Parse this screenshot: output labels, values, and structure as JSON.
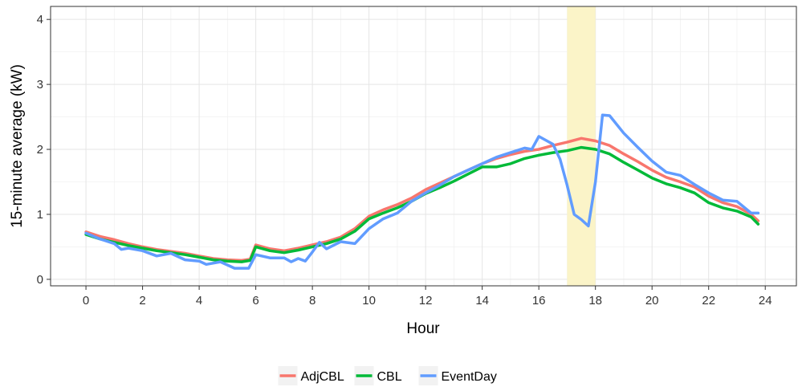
{
  "chart_data": {
    "type": "line",
    "xlabel": "Hour",
    "ylabel": "15-minute average (kW)",
    "xlim": [
      -1.25,
      25.1
    ],
    "ylim": [
      -0.1,
      4.2
    ],
    "x_ticks": [
      0,
      2,
      4,
      6,
      8,
      10,
      12,
      14,
      16,
      18,
      20,
      22,
      24
    ],
    "y_ticks": [
      0,
      1,
      2,
      3,
      4
    ],
    "grid": true,
    "legend_position": "bottom",
    "highlight_band": {
      "from": 17,
      "to": 18,
      "color": "#fbf4c8"
    },
    "series": [
      {
        "name": "AdjCBL",
        "color": "#f8766d",
        "points": [
          [
            0,
            0.73
          ],
          [
            0.5,
            0.66
          ],
          [
            1,
            0.61
          ],
          [
            1.5,
            0.55
          ],
          [
            2,
            0.5
          ],
          [
            2.5,
            0.46
          ],
          [
            3,
            0.43
          ],
          [
            3.5,
            0.4
          ],
          [
            4,
            0.36
          ],
          [
            4.5,
            0.32
          ],
          [
            5,
            0.3
          ],
          [
            5.5,
            0.29
          ],
          [
            5.8,
            0.31
          ],
          [
            6,
            0.53
          ],
          [
            6.5,
            0.47
          ],
          [
            7,
            0.44
          ],
          [
            7.5,
            0.48
          ],
          [
            8,
            0.53
          ],
          [
            8.5,
            0.58
          ],
          [
            9,
            0.65
          ],
          [
            9.5,
            0.78
          ],
          [
            10,
            0.97
          ],
          [
            10.5,
            1.07
          ],
          [
            11,
            1.15
          ],
          [
            11.5,
            1.25
          ],
          [
            12,
            1.38
          ],
          [
            12.5,
            1.48
          ],
          [
            13,
            1.58
          ],
          [
            13.5,
            1.68
          ],
          [
            14,
            1.78
          ],
          [
            14.5,
            1.86
          ],
          [
            15,
            1.92
          ],
          [
            15.5,
            1.97
          ],
          [
            16,
            2.0
          ],
          [
            16.5,
            2.06
          ],
          [
            17,
            2.11
          ],
          [
            17.5,
            2.17
          ],
          [
            18,
            2.13
          ],
          [
            18.5,
            2.06
          ],
          [
            19,
            1.93
          ],
          [
            19.5,
            1.81
          ],
          [
            20,
            1.68
          ],
          [
            20.5,
            1.57
          ],
          [
            21,
            1.5
          ],
          [
            21.5,
            1.42
          ],
          [
            22,
            1.28
          ],
          [
            22.5,
            1.18
          ],
          [
            23,
            1.12
          ],
          [
            23.5,
            1.0
          ],
          [
            23.75,
            0.9
          ]
        ]
      },
      {
        "name": "CBL",
        "color": "#00ba38",
        "points": [
          [
            0,
            0.69
          ],
          [
            0.5,
            0.62
          ],
          [
            1,
            0.57
          ],
          [
            1.5,
            0.52
          ],
          [
            2,
            0.48
          ],
          [
            2.5,
            0.44
          ],
          [
            3,
            0.41
          ],
          [
            3.5,
            0.38
          ],
          [
            4,
            0.34
          ],
          [
            4.5,
            0.3
          ],
          [
            5,
            0.28
          ],
          [
            5.5,
            0.27
          ],
          [
            5.8,
            0.29
          ],
          [
            6,
            0.5
          ],
          [
            6.5,
            0.44
          ],
          [
            7,
            0.41
          ],
          [
            7.5,
            0.45
          ],
          [
            8,
            0.5
          ],
          [
            8.5,
            0.55
          ],
          [
            9,
            0.62
          ],
          [
            9.5,
            0.74
          ],
          [
            10,
            0.93
          ],
          [
            10.5,
            1.02
          ],
          [
            11,
            1.1
          ],
          [
            11.5,
            1.2
          ],
          [
            12,
            1.32
          ],
          [
            12.5,
            1.41
          ],
          [
            13,
            1.51
          ],
          [
            13.5,
            1.62
          ],
          [
            14,
            1.73
          ],
          [
            14.5,
            1.73
          ],
          [
            15,
            1.78
          ],
          [
            15.5,
            1.86
          ],
          [
            16,
            1.91
          ],
          [
            16.5,
            1.95
          ],
          [
            17,
            1.98
          ],
          [
            17.5,
            2.03
          ],
          [
            18,
            2.0
          ],
          [
            18.5,
            1.93
          ],
          [
            19,
            1.8
          ],
          [
            19.5,
            1.68
          ],
          [
            20,
            1.56
          ],
          [
            20.5,
            1.47
          ],
          [
            21,
            1.41
          ],
          [
            21.5,
            1.33
          ],
          [
            22,
            1.18
          ],
          [
            22.5,
            1.1
          ],
          [
            23,
            1.05
          ],
          [
            23.5,
            0.96
          ],
          [
            23.75,
            0.85
          ]
        ]
      },
      {
        "name": "EventDay",
        "color": "#619cff",
        "points": [
          [
            0,
            0.71
          ],
          [
            0.5,
            0.62
          ],
          [
            1,
            0.55
          ],
          [
            1.25,
            0.46
          ],
          [
            1.5,
            0.48
          ],
          [
            2,
            0.44
          ],
          [
            2.5,
            0.36
          ],
          [
            3,
            0.4
          ],
          [
            3.5,
            0.3
          ],
          [
            4,
            0.28
          ],
          [
            4.25,
            0.23
          ],
          [
            4.75,
            0.27
          ],
          [
            5,
            0.22
          ],
          [
            5.25,
            0.17
          ],
          [
            5.75,
            0.17
          ],
          [
            6,
            0.38
          ],
          [
            6.5,
            0.33
          ],
          [
            7,
            0.33
          ],
          [
            7.25,
            0.27
          ],
          [
            7.5,
            0.32
          ],
          [
            7.75,
            0.28
          ],
          [
            8,
            0.42
          ],
          [
            8.25,
            0.57
          ],
          [
            8.5,
            0.47
          ],
          [
            9,
            0.58
          ],
          [
            9.5,
            0.55
          ],
          [
            10,
            0.78
          ],
          [
            10.5,
            0.93
          ],
          [
            11,
            1.02
          ],
          [
            11.5,
            1.2
          ],
          [
            12,
            1.33
          ],
          [
            12.5,
            1.45
          ],
          [
            13,
            1.58
          ],
          [
            13.5,
            1.68
          ],
          [
            14,
            1.78
          ],
          [
            14.5,
            1.88
          ],
          [
            15,
            1.95
          ],
          [
            15.5,
            2.02
          ],
          [
            15.75,
            2.0
          ],
          [
            16,
            2.2
          ],
          [
            16.5,
            2.08
          ],
          [
            16.75,
            1.85
          ],
          [
            17,
            1.45
          ],
          [
            17.25,
            1.0
          ],
          [
            17.5,
            0.92
          ],
          [
            17.75,
            0.82
          ],
          [
            18,
            1.5
          ],
          [
            18.25,
            2.53
          ],
          [
            18.5,
            2.52
          ],
          [
            19,
            2.25
          ],
          [
            19.5,
            2.03
          ],
          [
            20,
            1.82
          ],
          [
            20.5,
            1.65
          ],
          [
            21,
            1.6
          ],
          [
            21.5,
            1.46
          ],
          [
            22,
            1.33
          ],
          [
            22.5,
            1.22
          ],
          [
            23,
            1.2
          ],
          [
            23.5,
            1.02
          ],
          [
            23.75,
            1.02
          ]
        ]
      }
    ]
  }
}
